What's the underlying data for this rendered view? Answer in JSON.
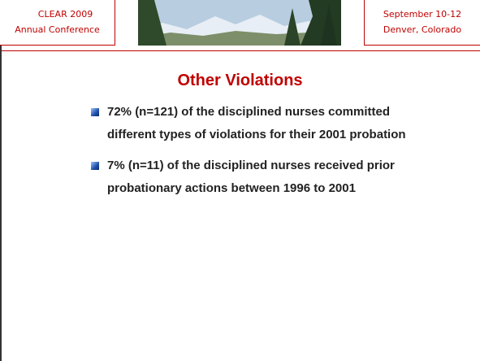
{
  "header": {
    "left": [
      "CLEAR 2009",
      "Annual Conference"
    ],
    "right": [
      "September 10-12",
      "Denver, Colorado"
    ]
  },
  "title": "Other Violations",
  "bullets": [
    "72% (n=121) of the disciplined nurses committed different types of violations for their 2001 probation",
    "7% (n=11) of the disciplined nurses received prior probationary actions between 1996 to 2001"
  ]
}
